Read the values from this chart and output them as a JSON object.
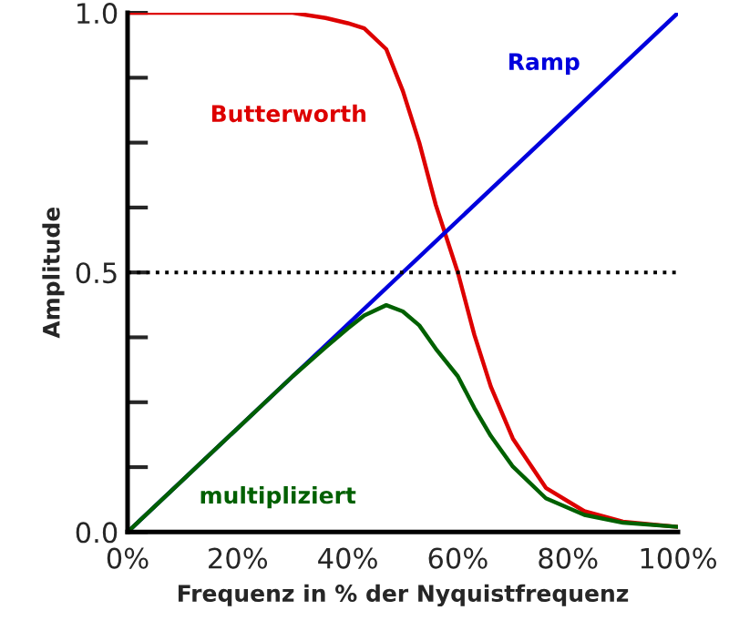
{
  "chart_data": {
    "type": "line",
    "xlabel": "Frequenz in % der Nyquistfrequenz",
    "ylabel": "Amplitude",
    "xlim": [
      0,
      100
    ],
    "ylim": [
      0,
      1
    ],
    "xticks": [
      {
        "value": 0,
        "label": "0%"
      },
      {
        "value": 20,
        "label": "20%"
      },
      {
        "value": 40,
        "label": "40%"
      },
      {
        "value": 60,
        "label": "60%"
      },
      {
        "value": 80,
        "label": "80%"
      },
      {
        "value": 100,
        "label": "100%"
      }
    ],
    "yticks": [
      {
        "value": 0,
        "label": "0.0"
      },
      {
        "value": 0.125,
        "label": null
      },
      {
        "value": 0.25,
        "label": null
      },
      {
        "value": 0.375,
        "label": null
      },
      {
        "value": 0.5,
        "label": "0.5"
      },
      {
        "value": 0.625,
        "label": null
      },
      {
        "value": 0.75,
        "label": null
      },
      {
        "value": 0.875,
        "label": null
      },
      {
        "value": 1,
        "label": "1.0"
      }
    ],
    "grid": false,
    "legend": false,
    "marker": "none",
    "line_style": "solid",
    "ref_lines": [
      {
        "axis": "y",
        "value": 0.5,
        "color": "#000000",
        "line_style": "dotted"
      }
    ],
    "series": [
      {
        "name": "Butterworth",
        "color": "#dd0000",
        "x": [
          0,
          10,
          20,
          30,
          36,
          40,
          43,
          47,
          50,
          53,
          56,
          60,
          63,
          66,
          70,
          76,
          83,
          90,
          100
        ],
        "values": [
          1,
          1,
          1,
          1,
          0.99,
          0.98,
          0.97,
          0.93,
          0.85,
          0.75,
          0.63,
          0.5,
          0.38,
          0.28,
          0.18,
          0.085,
          0.04,
          0.02,
          0.01
        ]
      },
      {
        "name": "Ramp",
        "color": "#0000dd",
        "x": [
          0,
          100
        ],
        "values": [
          0,
          1
        ]
      },
      {
        "name": "multipliziert",
        "color": "#006000",
        "x": [
          0,
          10,
          20,
          30,
          36,
          40,
          43,
          47,
          50,
          53,
          56,
          60,
          63,
          66,
          70,
          76,
          83,
          90,
          100
        ],
        "values": [
          0,
          0.1,
          0.2,
          0.3,
          0.356,
          0.392,
          0.417,
          0.437,
          0.425,
          0.398,
          0.353,
          0.3,
          0.239,
          0.185,
          0.126,
          0.065,
          0.033,
          0.018,
          0.01
        ]
      }
    ]
  }
}
